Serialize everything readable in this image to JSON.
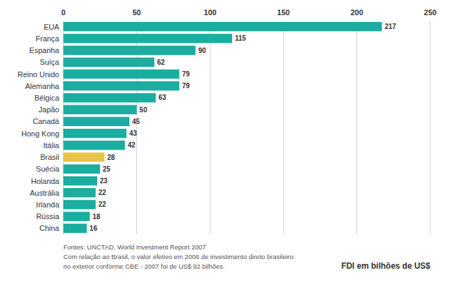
{
  "chart_data": {
    "type": "bar",
    "orientation": "horizontal",
    "categories": [
      "EUA",
      "França",
      "Espanha",
      "Suíça",
      "Reino Unido",
      "Alemanha",
      "Bélgica",
      "Japão",
      "Canadá",
      "Hong Kong",
      "Itália",
      "Brasil",
      "Suécia",
      "Holanda",
      "Austrália",
      "Irlanda",
      "Rússia",
      "China"
    ],
    "values": [
      217,
      115,
      90,
      62,
      79,
      79,
      63,
      50,
      45,
      43,
      42,
      28,
      25,
      23,
      22,
      22,
      18,
      16
    ],
    "colors": [
      "#1aada0",
      "#1aada0",
      "#1aada0",
      "#1aada0",
      "#1aada0",
      "#1aada0",
      "#1aada0",
      "#1aada0",
      "#1aada0",
      "#1aada0",
      "#1aada0",
      "#e8c44a",
      "#1aada0",
      "#1aada0",
      "#1aada0",
      "#1aada0",
      "#1aada0",
      "#1aada0"
    ],
    "xlabel": "FDI em bilhões de US$",
    "xlim": [
      0,
      250
    ],
    "xticks": [
      0,
      50,
      100,
      150,
      200,
      250
    ],
    "grid": true,
    "data_labels": true,
    "annotations": [
      "Fontes: UNCTAD, World Investment Report 2007",
      "Com relação ao Brasil, o valor efetivo em 2006 de investimento direto brasileiro",
      "no exterior conforme CBE - 2007 foi de US$ 92 bilhões."
    ]
  }
}
